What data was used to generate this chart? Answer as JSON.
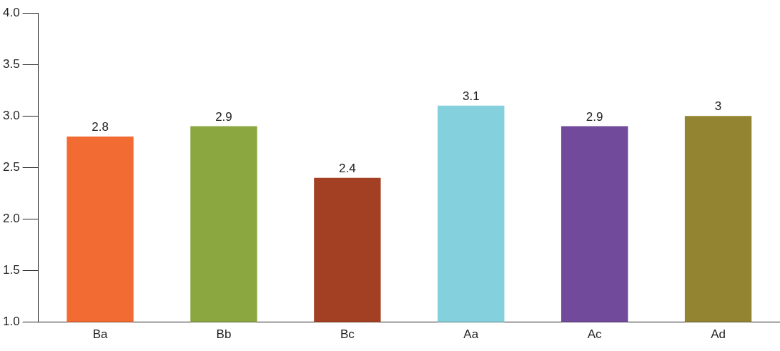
{
  "chart_data": {
    "type": "bar",
    "categories": [
      "Ba",
      "Bb",
      "Bc",
      "Aa",
      "Ac",
      "Ad"
    ],
    "values": [
      2.8,
      2.9,
      2.4,
      3.1,
      2.9,
      3
    ],
    "colors": [
      "#f26b33",
      "#8aa83f",
      "#a33f22",
      "#84d1dd",
      "#714a9c",
      "#928431"
    ],
    "ylim": [
      1,
      4
    ],
    "yticks": [
      {
        "value": 1,
        "label": "1.0"
      },
      {
        "value": 1.5,
        "label": "1.5"
      },
      {
        "value": 2,
        "label": "2.0"
      },
      {
        "value": 2.5,
        "label": "2.5"
      },
      {
        "value": 3,
        "label": "3.0"
      },
      {
        "value": 3.5,
        "label": "3.5"
      },
      {
        "value": 4,
        "label": "4.0"
      }
    ],
    "data_labels": true,
    "grid": false,
    "legend": false
  }
}
